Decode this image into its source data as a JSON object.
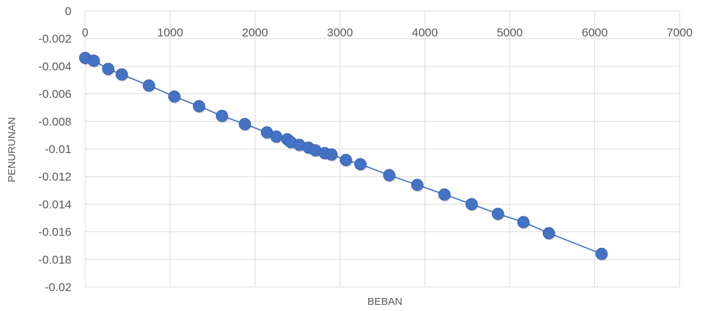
{
  "chart_data": {
    "type": "scatter",
    "title": "",
    "xlabel": "BEBAN",
    "ylabel": "PENURUNAN",
    "xlim": [
      0,
      7000
    ],
    "ylim": [
      -0.02,
      0
    ],
    "x_ticks": [
      0,
      1000,
      2000,
      3000,
      4000,
      5000,
      6000,
      7000
    ],
    "y_ticks": [
      0,
      -0.002,
      -0.004,
      -0.006,
      -0.008,
      -0.01,
      -0.012,
      -0.014,
      -0.016,
      -0.018,
      -0.02
    ],
    "x_tick_labels": [
      "0",
      "1000",
      "2000",
      "3000",
      "4000",
      "5000",
      "6000",
      "7000"
    ],
    "y_tick_labels": [
      "0",
      "-0.002",
      "-0.004",
      "-0.006",
      "-0.008",
      "-0.01",
      "-0.012",
      "-0.014",
      "-0.016",
      "-0.018",
      "-0.02"
    ],
    "grid": true,
    "legend": "none",
    "series": [
      {
        "color": "#4472C4",
        "marker_color": "#4472C4",
        "line": true,
        "points": [
          {
            "x": 0,
            "y": -0.0034
          },
          {
            "x": 100,
            "y": -0.0036
          },
          {
            "x": 270,
            "y": -0.0042
          },
          {
            "x": 430,
            "y": -0.0046
          },
          {
            "x": 750,
            "y": -0.0054
          },
          {
            "x": 1050,
            "y": -0.0062
          },
          {
            "x": 1340,
            "y": -0.0069
          },
          {
            "x": 1610,
            "y": -0.0076
          },
          {
            "x": 1880,
            "y": -0.0082
          },
          {
            "x": 2140,
            "y": -0.0088
          },
          {
            "x": 2250,
            "y": -0.0091
          },
          {
            "x": 2380,
            "y": -0.0093
          },
          {
            "x": 2420,
            "y": -0.0095
          },
          {
            "x": 2520,
            "y": -0.0097
          },
          {
            "x": 2630,
            "y": -0.0099
          },
          {
            "x": 2710,
            "y": -0.0101
          },
          {
            "x": 2820,
            "y": -0.0103
          },
          {
            "x": 2900,
            "y": -0.0104
          },
          {
            "x": 3070,
            "y": -0.0108
          },
          {
            "x": 3240,
            "y": -0.0111
          },
          {
            "x": 3580,
            "y": -0.0119
          },
          {
            "x": 3910,
            "y": -0.0126
          },
          {
            "x": 4230,
            "y": -0.0133
          },
          {
            "x": 4550,
            "y": -0.014
          },
          {
            "x": 4860,
            "y": -0.0147
          },
          {
            "x": 5160,
            "y": -0.0153
          },
          {
            "x": 5460,
            "y": -0.0161
          },
          {
            "x": 6080,
            "y": -0.0176
          }
        ]
      }
    ]
  }
}
